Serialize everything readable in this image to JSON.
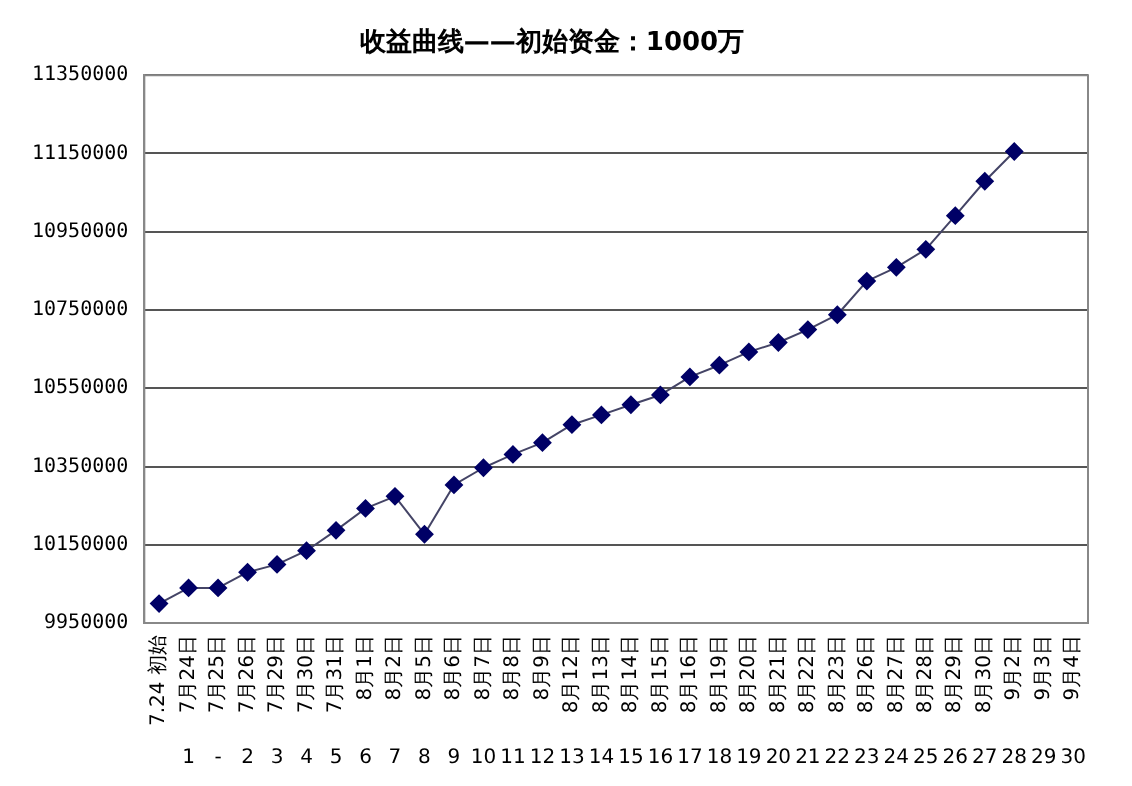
{
  "chart_data": {
    "type": "line",
    "title": "收益曲线——初始资金：1000万",
    "categories": [
      "7.24 初始",
      "7月24日\n1",
      "7月25日\n-",
      "7月26日\n2",
      "7月29日\n3",
      "7月30日\n4",
      "7月31日\n5",
      "8月1日\n6",
      "8月2日\n7",
      "8月5日\n8",
      "8月6日\n9",
      "8月7日\n10",
      "8月8日\n11",
      "8月9日\n12",
      "8月12日\n13",
      "8月13日\n14",
      "8月14日\n15",
      "8月15日\n16",
      "8月16日\n17",
      "8月19日\n18",
      "8月20日\n19",
      "8月21日\n20",
      "8月22日\n21",
      "8月23日\n22",
      "8月26日\n23",
      "8月27日\n24",
      "8月28日\n25",
      "8月29日\n26",
      "8月30日\n27",
      "9月2日\n28",
      "9月3日\n29",
      "9月4日\n30"
    ],
    "series": [
      {
        "color": "#000066",
        "values": [
          10000000,
          10040000,
          10040000,
          10080000,
          10100000,
          10135000,
          10187000,
          10243000,
          10274000,
          10177000,
          10303000,
          10347000,
          10381000,
          10411000,
          10457000,
          10482000,
          10508000,
          10533000,
          10579000,
          10609000,
          10643000,
          10667000,
          10700000,
          10738000,
          10824000,
          10859000,
          10905000,
          10991000,
          11079000,
          11155000,
          null,
          null
        ]
      }
    ],
    "ylim": [
      9950000,
      11350000
    ],
    "yticks": [
      9950000,
      10150000,
      10350000,
      10550000,
      10750000,
      10950000,
      11150000,
      11350000
    ],
    "grid": "y",
    "legend": false,
    "marker": "diamond",
    "line_style": "solid"
  }
}
